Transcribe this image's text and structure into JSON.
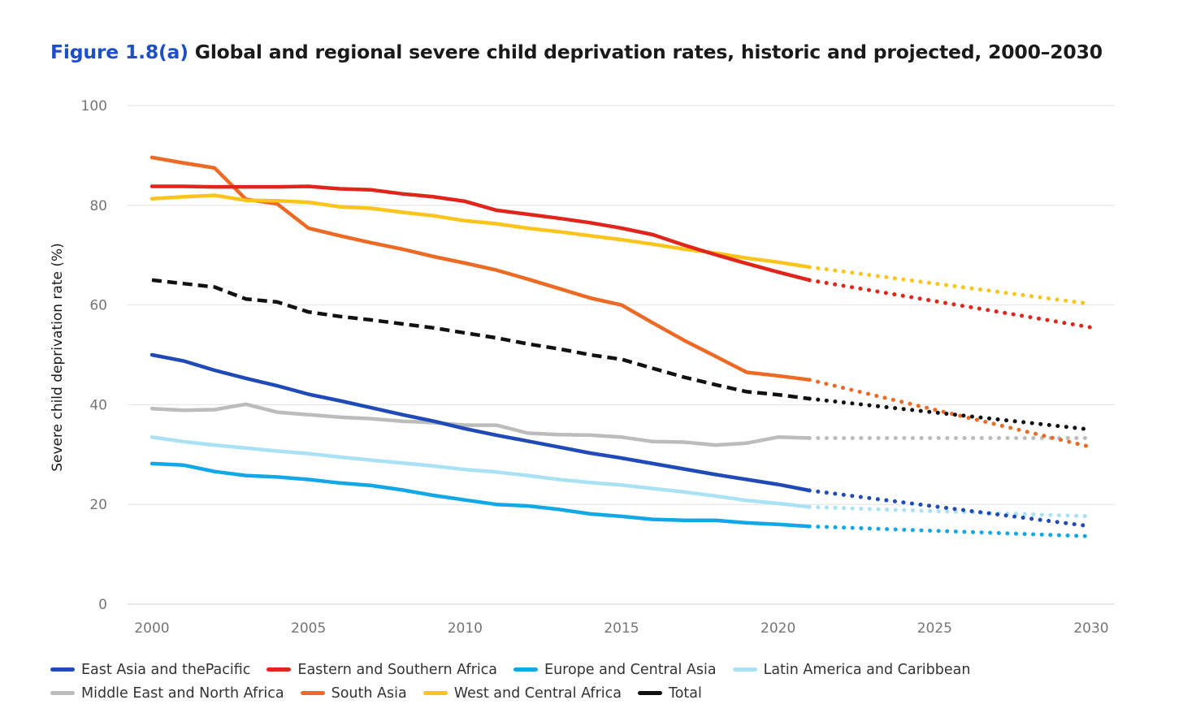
{
  "title": {
    "figure": "Figure 1.8(a)",
    "text": "Global and regional severe child deprivation rates, historic and projected, 2000–2030"
  },
  "chart_data": {
    "type": "line",
    "title": "Figure 1.8(a) Global and regional severe child deprivation rates, historic and projected, 2000–2030",
    "xlabel": "",
    "ylabel": "Severe child deprivation rate (%)",
    "xlim": [
      2000,
      2030
    ],
    "ylim": [
      0,
      100
    ],
    "xticks": [
      2000,
      2005,
      2010,
      2015,
      2020,
      2025,
      2030
    ],
    "yticks": [
      0,
      20,
      40,
      60,
      80,
      100
    ],
    "grid": true,
    "legend_position": "bottom",
    "historic_range": [
      2000,
      2021
    ],
    "projection_range": [
      2021,
      2030
    ],
    "series": [
      {
        "name": "East Asia and thePacific",
        "color": "#1f4ab8",
        "dashed": false,
        "historic_x": [
          2000,
          2001,
          2002,
          2003,
          2004,
          2005,
          2006,
          2007,
          2008,
          2009,
          2010,
          2011,
          2012,
          2013,
          2014,
          2015,
          2016,
          2017,
          2018,
          2019,
          2020,
          2021
        ],
        "historic_y": [
          50.0,
          48.8,
          46.9,
          45.3,
          43.8,
          42.1,
          40.8,
          39.4,
          38.0,
          36.7,
          35.2,
          33.9,
          32.7,
          31.5,
          30.3,
          29.3,
          28.2,
          27.1,
          26.0,
          25.0,
          24.0,
          22.8
        ],
        "projected_x": [
          2021,
          2030
        ],
        "projected_y": [
          22.8,
          15.6
        ]
      },
      {
        "name": "Eastern and Southern Africa",
        "color": "#e0251b",
        "dashed": false,
        "historic_x": [
          2000,
          2001,
          2002,
          2003,
          2004,
          2005,
          2006,
          2007,
          2008,
          2009,
          2010,
          2011,
          2012,
          2013,
          2014,
          2015,
          2016,
          2017,
          2018,
          2019,
          2020,
          2021
        ],
        "historic_y": [
          83.8,
          83.8,
          83.7,
          83.7,
          83.7,
          83.8,
          83.3,
          83.1,
          82.3,
          81.7,
          80.8,
          79.0,
          78.2,
          77.4,
          76.5,
          75.4,
          74.1,
          72.0,
          70.1,
          68.3,
          66.6,
          65.0
        ],
        "projected_x": [
          2021,
          2030
        ],
        "projected_y": [
          65.0,
          55.5
        ]
      },
      {
        "name": "Europe and Central Asia",
        "color": "#12a7e6",
        "dashed": false,
        "historic_x": [
          2000,
          2001,
          2002,
          2003,
          2004,
          2005,
          2006,
          2007,
          2008,
          2009,
          2010,
          2011,
          2012,
          2013,
          2014,
          2015,
          2016,
          2017,
          2018,
          2019,
          2020,
          2021
        ],
        "historic_y": [
          28.2,
          27.9,
          26.6,
          25.8,
          25.5,
          25.0,
          24.3,
          23.8,
          22.9,
          21.8,
          20.9,
          20.0,
          19.7,
          19.0,
          18.1,
          17.6,
          17.0,
          16.8,
          16.8,
          16.3,
          16.0,
          15.6
        ],
        "projected_x": [
          2021,
          2030
        ],
        "projected_y": [
          15.6,
          13.6
        ]
      },
      {
        "name": "Latin America and Caribbean",
        "color": "#a9e1f5",
        "dashed": false,
        "historic_x": [
          2000,
          2001,
          2002,
          2003,
          2004,
          2005,
          2006,
          2007,
          2008,
          2009,
          2010,
          2011,
          2012,
          2013,
          2014,
          2015,
          2016,
          2017,
          2018,
          2019,
          2020,
          2021
        ],
        "historic_y": [
          33.5,
          32.6,
          31.9,
          31.3,
          30.7,
          30.2,
          29.5,
          28.9,
          28.3,
          27.7,
          27.0,
          26.5,
          25.8,
          25.0,
          24.4,
          23.9,
          23.2,
          22.5,
          21.7,
          20.8,
          20.2,
          19.5
        ],
        "projected_x": [
          2021,
          2030
        ],
        "projected_y": [
          19.5,
          17.6
        ]
      },
      {
        "name": "Middle East and North Africa",
        "color": "#bcbcbc",
        "dashed": false,
        "historic_x": [
          2000,
          2001,
          2002,
          2003,
          2004,
          2005,
          2006,
          2007,
          2008,
          2009,
          2010,
          2011,
          2012,
          2013,
          2014,
          2015,
          2016,
          2017,
          2018,
          2019,
          2020,
          2021
        ],
        "historic_y": [
          39.2,
          38.9,
          39.0,
          40.1,
          38.5,
          38.0,
          37.5,
          37.2,
          36.7,
          36.4,
          35.9,
          35.9,
          34.3,
          34.0,
          33.9,
          33.5,
          32.6,
          32.5,
          31.9,
          32.3,
          33.5,
          33.3
        ],
        "projected_x": [
          2021,
          2030
        ],
        "projected_y": [
          33.3,
          33.3
        ]
      },
      {
        "name": "South Asia",
        "color": "#ec6a24",
        "dashed": false,
        "historic_x": [
          2000,
          2001,
          2002,
          2003,
          2004,
          2005,
          2006,
          2007,
          2008,
          2009,
          2010,
          2011,
          2012,
          2013,
          2014,
          2015,
          2016,
          2017,
          2018,
          2019,
          2020,
          2021
        ],
        "historic_y": [
          89.6,
          88.5,
          87.5,
          81.2,
          80.3,
          75.4,
          73.9,
          72.5,
          71.2,
          69.7,
          68.4,
          67.0,
          65.2,
          63.3,
          61.4,
          60.0,
          56.4,
          52.9,
          49.7,
          46.5,
          45.8,
          45.0
        ],
        "projected_x": [
          2021,
          2030
        ],
        "projected_y": [
          45.0,
          31.5
        ]
      },
      {
        "name": "West and Central Africa",
        "color": "#fbc41b",
        "dashed": false,
        "historic_x": [
          2000,
          2001,
          2002,
          2003,
          2004,
          2005,
          2006,
          2007,
          2008,
          2009,
          2010,
          2011,
          2012,
          2013,
          2014,
          2015,
          2016,
          2017,
          2018,
          2019,
          2020,
          2021
        ],
        "historic_y": [
          81.3,
          81.7,
          82.0,
          81.0,
          80.9,
          80.6,
          79.7,
          79.4,
          78.6,
          77.9,
          76.9,
          76.3,
          75.4,
          74.7,
          73.9,
          73.1,
          72.2,
          71.2,
          70.4,
          69.4,
          68.6,
          67.6
        ],
        "projected_x": [
          2021,
          2030
        ],
        "projected_y": [
          67.6,
          60.2
        ]
      },
      {
        "name": "Total",
        "color": "#111111",
        "dashed": true,
        "historic_x": [
          2000,
          2001,
          2002,
          2003,
          2004,
          2005,
          2006,
          2007,
          2008,
          2009,
          2010,
          2011,
          2012,
          2013,
          2014,
          2015,
          2016,
          2017,
          2018,
          2019,
          2020,
          2021
        ],
        "historic_y": [
          65.0,
          64.3,
          63.6,
          61.2,
          60.6,
          58.6,
          57.7,
          57.0,
          56.2,
          55.4,
          54.4,
          53.4,
          52.2,
          51.2,
          50.0,
          49.1,
          47.3,
          45.5,
          44.0,
          42.6,
          42.0,
          41.2
        ],
        "projected_x": [
          2021,
          2030
        ],
        "projected_y": [
          41.2,
          35.0
        ]
      }
    ]
  }
}
